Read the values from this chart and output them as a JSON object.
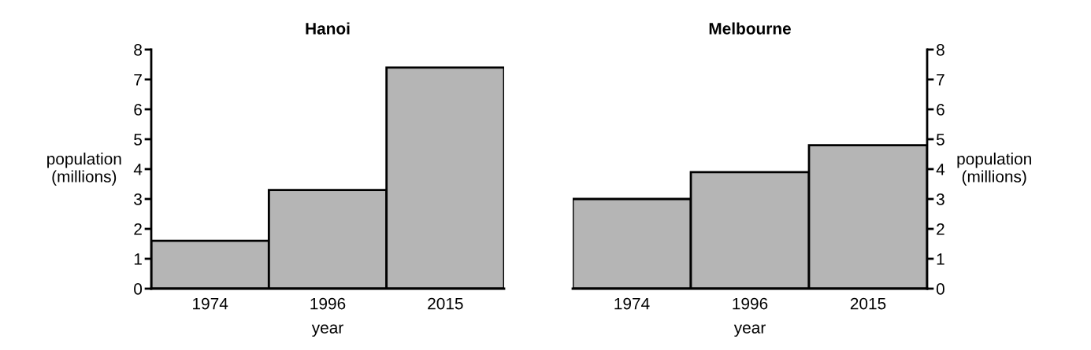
{
  "chart_data": [
    {
      "type": "bar",
      "title": "Hanoi",
      "xlabel": "year",
      "ylabel": "population\n(millions)",
      "categories": [
        "1974",
        "1996",
        "2015"
      ],
      "series": [
        {
          "values": [
            1.6,
            3.3,
            7.4
          ],
          "color": "#b5b5b5"
        }
      ],
      "ylim": [
        0,
        8
      ],
      "yticks": [
        0,
        1,
        2,
        3,
        4,
        5,
        6,
        7,
        8
      ],
      "grid": false
    },
    {
      "type": "bar",
      "title": "Melbourne",
      "xlabel": "year",
      "y2label": "population\n(millions)",
      "categories": [
        "1974",
        "1996",
        "2015"
      ],
      "series": [
        {
          "values": [
            3.0,
            3.9,
            4.8
          ],
          "color": "#b5b5b5",
          "axis": "y2"
        }
      ],
      "y2lim": [
        0,
        8
      ],
      "y2ticks": [
        0,
        1,
        2,
        3,
        4,
        5,
        6,
        7,
        8
      ],
      "grid": false
    }
  ]
}
